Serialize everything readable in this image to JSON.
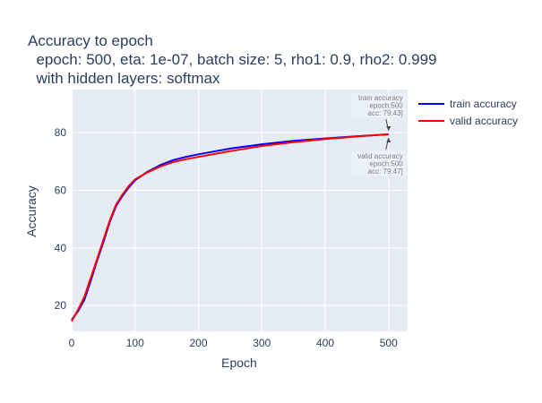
{
  "chart_data": {
    "type": "line",
    "title_lines": [
      "Accuracy to epoch",
      "  epoch: 500, eta: 1e-07, batch size: 5, rho1: 0.9, rho2: 0.999",
      "  with hidden layers: softmax"
    ],
    "xlabel": "Epoch",
    "ylabel": "Accuracy",
    "xlim": [
      0,
      530
    ],
    "ylim": [
      11,
      95
    ],
    "xticks": [
      0,
      100,
      200,
      300,
      400,
      500
    ],
    "yticks": [
      20,
      40,
      60,
      80
    ],
    "grid": true,
    "legend_position": "right",
    "series": [
      {
        "name": "train accuracy",
        "color": "#0000ff",
        "x": [
          0,
          10,
          20,
          30,
          40,
          50,
          60,
          70,
          80,
          90,
          100,
          120,
          140,
          160,
          180,
          200,
          250,
          300,
          350,
          400,
          450,
          500
        ],
        "y": [
          15,
          18,
          22,
          28.5,
          35.5,
          42,
          49,
          54.5,
          58,
          61,
          63.5,
          66.5,
          68.8,
          70.5,
          71.6,
          72.5,
          74.5,
          76,
          77.2,
          78,
          78.8,
          79.43
        ]
      },
      {
        "name": "valid accuracy",
        "color": "#ff0000",
        "x": [
          0,
          10,
          20,
          30,
          40,
          50,
          60,
          70,
          80,
          90,
          100,
          120,
          140,
          160,
          180,
          200,
          250,
          300,
          350,
          400,
          450,
          500
        ],
        "y": [
          14.5,
          18.5,
          23,
          29.5,
          36,
          42.8,
          49.5,
          55,
          58.5,
          61.5,
          63.8,
          66.3,
          68.3,
          69.8,
          70.8,
          71.6,
          73.6,
          75.4,
          76.7,
          77.8,
          78.7,
          79.47
        ]
      }
    ],
    "annotations": [
      {
        "lines": [
          "train accuracy",
          "epoch:500",
          "acc: 79.43]"
        ],
        "x": 500,
        "y": 79.43,
        "placement": "above"
      },
      {
        "lines": [
          "valid accuracy",
          "epoch:500",
          "acc: 79.47]"
        ],
        "x": 500,
        "y": 79.47,
        "placement": "below"
      }
    ]
  }
}
